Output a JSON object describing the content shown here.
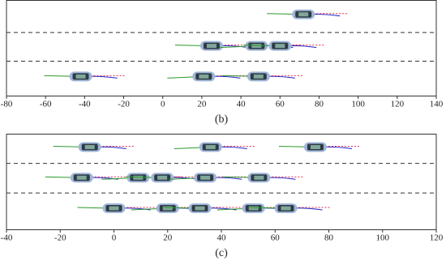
{
  "chart_data": [
    {
      "type": "scatter",
      "label": "(b)",
      "xlim": [
        -80,
        140
      ],
      "xticks": [
        -80,
        -60,
        -40,
        -20,
        0,
        20,
        40,
        60,
        80,
        100,
        120,
        140
      ],
      "series": [
        {
          "x": [
            72
          ]
        },
        {
          "x": [
            25,
            48,
            60
          ]
        },
        {
          "x": [
            -42,
            21,
            49
          ]
        }
      ]
    },
    {
      "type": "scatter",
      "label": "(c)",
      "xlim": [
        -40,
        120
      ],
      "xticks": [
        -40,
        -20,
        0,
        20,
        40,
        60,
        80,
        100,
        120
      ],
      "series": [
        {
          "x": [
            -9,
            36,
            75
          ]
        },
        {
          "x": [
            -12,
            9,
            18,
            34,
            54
          ]
        },
        {
          "x": [
            0,
            20,
            32,
            52,
            64
          ]
        }
      ]
    }
  ]
}
